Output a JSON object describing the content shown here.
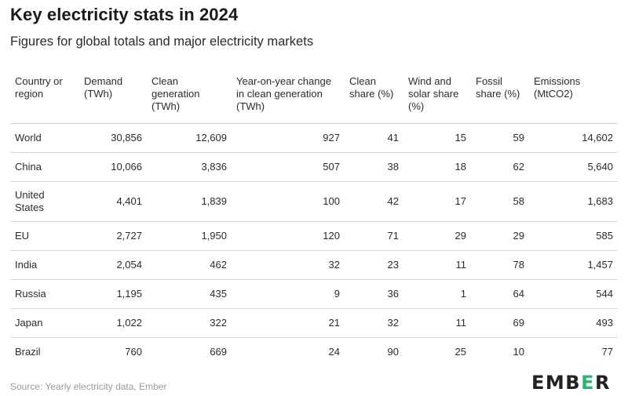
{
  "title": "Key electricity stats in 2024",
  "subtitle": "Figures for global totals and major electricity markets",
  "source": "Source: Yearly electricity data, Ember",
  "logo": {
    "text": "EMBER",
    "accent_color": "#2bb573"
  },
  "chart_data": {
    "type": "table",
    "columns": [
      "Country or region",
      "Demand (TWh)",
      "Clean generation (TWh)",
      "Year-on-year change in clean generation (TWh)",
      "Clean share (%)",
      "Wind and solar share (%)",
      "Fossil share (%)",
      "Emissions (MtCO2)"
    ],
    "rows": [
      [
        "World",
        "30,856",
        "12,609",
        "927",
        "41",
        "15",
        "59",
        "14,602"
      ],
      [
        "China",
        "10,066",
        "3,836",
        "507",
        "38",
        "18",
        "62",
        "5,640"
      ],
      [
        "United States",
        "4,401",
        "1,839",
        "100",
        "42",
        "17",
        "58",
        "1,683"
      ],
      [
        "EU",
        "2,727",
        "1,950",
        "120",
        "71",
        "29",
        "29",
        "585"
      ],
      [
        "India",
        "2,054",
        "462",
        "32",
        "23",
        "11",
        "78",
        "1,457"
      ],
      [
        "Russia",
        "1,195",
        "435",
        "9",
        "36",
        "1",
        "64",
        "544"
      ],
      [
        "Japan",
        "1,022",
        "322",
        "21",
        "32",
        "11",
        "69",
        "493"
      ],
      [
        "Brazil",
        "760",
        "669",
        "24",
        "90",
        "25",
        "10",
        "77"
      ]
    ]
  }
}
